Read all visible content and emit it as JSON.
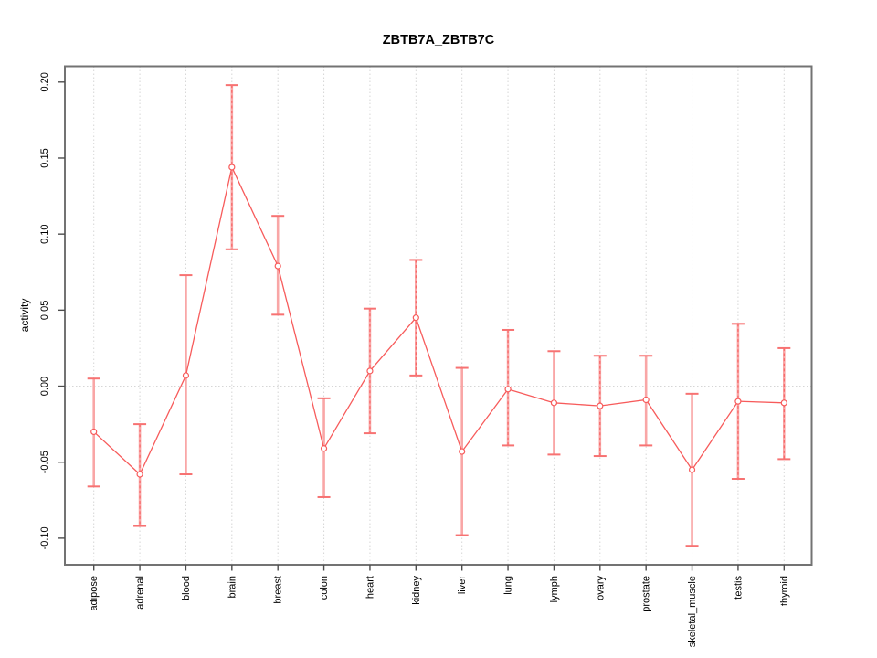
{
  "page": {
    "background": "#ffffff"
  },
  "chart_data": {
    "type": "line",
    "title": "ZBTB7A_ZBTB7C",
    "ylabel": "activity",
    "xlabel": "",
    "categories": [
      "adipose",
      "adrenal",
      "blood",
      "brain",
      "breast",
      "colon",
      "heart",
      "kidney",
      "liver",
      "lung",
      "lymph",
      "ovary",
      "prostate",
      "skeletal_muscle",
      "testis",
      "thyroid"
    ],
    "series": [
      {
        "name": "activity",
        "values": [
          -0.03,
          -0.058,
          0.007,
          0.144,
          0.079,
          -0.041,
          0.01,
          0.045,
          -0.043,
          -0.002,
          -0.011,
          -0.013,
          -0.009,
          -0.055,
          -0.01,
          -0.011
        ],
        "ci_lower": [
          -0.066,
          -0.092,
          -0.058,
          0.09,
          0.047,
          -0.073,
          -0.031,
          0.007,
          -0.098,
          -0.039,
          -0.045,
          -0.046,
          -0.039,
          -0.105,
          -0.061,
          -0.048
        ],
        "ci_upper": [
          0.005,
          -0.025,
          0.073,
          0.198,
          0.112,
          -0.008,
          0.051,
          0.083,
          0.012,
          0.037,
          0.023,
          0.02,
          0.02,
          -0.005,
          0.041,
          0.025
        ]
      }
    ],
    "yticks": [
      0.2,
      0.15,
      0.1,
      0.05,
      0.0,
      -0.05,
      -0.1
    ],
    "ytick_labels": [
      "0.20",
      "0.15",
      "0.10",
      "0.05",
      "0.00",
      "-0.05",
      "-0.10"
    ],
    "ylim": [
      -0.1175,
      0.2104
    ],
    "grid": {
      "vertical_at_categories": true,
      "horizontal_zero_line": true,
      "style": "dotted"
    },
    "legend": "none",
    "marker": "open-circle",
    "whisker_styles": [
      "solid",
      "dashed",
      "solid",
      "dashed",
      "solid",
      "solid",
      "dashed",
      "dashed",
      "solid",
      "dashed",
      "solid",
      "dashed",
      "solid",
      "solid",
      "dashed",
      "dashed"
    ],
    "colors": {
      "line": "#f75b5b",
      "point": "#f75b5b",
      "whisker": "#f9a6a6",
      "whisker_dash": "#f75b5b",
      "cap": "#f77272",
      "grid": "#d6d6d6",
      "box": "#737373",
      "tick": "#4d4d4d",
      "text": "#000000"
    }
  }
}
